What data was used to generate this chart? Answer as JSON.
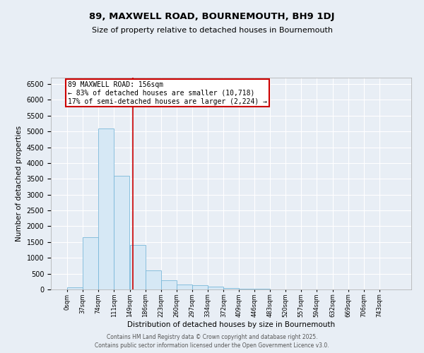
{
  "title": "89, MAXWELL ROAD, BOURNEMOUTH, BH9 1DJ",
  "subtitle": "Size of property relative to detached houses in Bournemouth",
  "xlabel": "Distribution of detached houses by size in Bournemouth",
  "ylabel": "Number of detached properties",
  "bar_color": "#d6e8f5",
  "bar_edgecolor": "#7ab8d9",
  "background_color": "#e8eef5",
  "grid_color": "#ffffff",
  "bin_edges": [
    0,
    37,
    74,
    111,
    149,
    186,
    223,
    260,
    297,
    334,
    372,
    409,
    446,
    483,
    520,
    557,
    594,
    632,
    669,
    706,
    743
  ],
  "bin_labels": [
    "0sqm",
    "37sqm",
    "74sqm",
    "111sqm",
    "149sqm",
    "186sqm",
    "223sqm",
    "260sqm",
    "297sqm",
    "334sqm",
    "372sqm",
    "409sqm",
    "446sqm",
    "483sqm",
    "520sqm",
    "557sqm",
    "594sqm",
    "632sqm",
    "669sqm",
    "706sqm",
    "743sqm"
  ],
  "bar_heights": [
    75,
    1650,
    5100,
    3600,
    1400,
    600,
    300,
    150,
    125,
    90,
    50,
    20,
    15,
    5,
    3,
    2,
    1,
    0,
    0,
    0,
    0
  ],
  "ylim": [
    0,
    6700
  ],
  "yticks": [
    0,
    500,
    1000,
    1500,
    2000,
    2500,
    3000,
    3500,
    4000,
    4500,
    5000,
    5500,
    6000,
    6500
  ],
  "vline_x": 156,
  "vline_color": "#cc0000",
  "annotation_line1": "89 MAXWELL ROAD: 156sqm",
  "annotation_line2": "← 83% of detached houses are smaller (10,718)",
  "annotation_line3": "17% of semi-detached houses are larger (2,224) →",
  "annotation_box_color": "#ffffff",
  "annotation_box_edgecolor": "#cc0000",
  "footer_line1": "Contains HM Land Registry data © Crown copyright and database right 2025.",
  "footer_line2": "Contains public sector information licensed under the Open Government Licence v3.0."
}
